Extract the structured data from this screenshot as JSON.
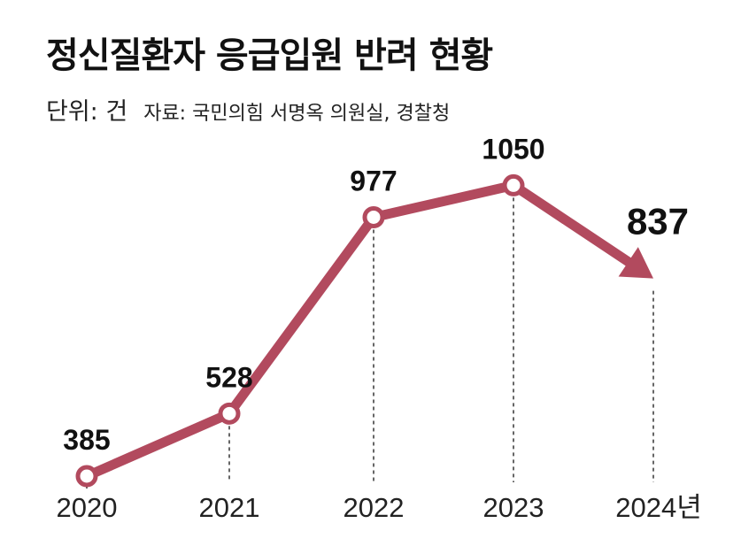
{
  "header": {
    "title": "정신질환자 응급입원 반려 현황",
    "unit": "단위: 건",
    "source": "자료: 국민의힘 서명옥 의원실, 경찰청"
  },
  "chart_data": {
    "type": "line",
    "categories": [
      "2020",
      "2021",
      "2022",
      "2023",
      "2024년"
    ],
    "values": [
      385,
      528,
      977,
      1050,
      837
    ],
    "data_labels": [
      "385",
      "528",
      "977",
      "1050",
      "837"
    ],
    "emphasized_last": true,
    "series_color": "#b24a5e",
    "grid": false,
    "ylim": [
      300,
      1150
    ]
  }
}
